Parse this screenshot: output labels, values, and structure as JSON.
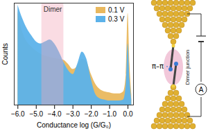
{
  "chart_data": {
    "type": "area",
    "x_label": "Conductance log (G/G₀)",
    "y_label": "Counts",
    "x": [
      -6,
      -5.75,
      -5.5,
      -5.25,
      -5,
      -4.75,
      -4.5,
      -4.25,
      -4,
      -3.75,
      -3.5,
      -3.25,
      -3,
      -2.75,
      -2.5,
      -2.25,
      -2,
      -1.75,
      -1.5,
      -1.25,
      -1,
      -0.75,
      -0.5,
      -0.25,
      -0.1,
      0,
      0.1,
      0.2
    ],
    "series": [
      {
        "name": "0.1 V",
        "color": "#e9b85e",
        "values": [
          92,
          72,
          62,
          57,
          53,
          50,
          48,
          47,
          46,
          45,
          44,
          40,
          35,
          38,
          45,
          42,
          30,
          20,
          15,
          13,
          12,
          11,
          11,
          13,
          30,
          90,
          40,
          10
        ]
      },
      {
        "name": "0.3 V",
        "color": "#5cb2ea",
        "values": [
          98,
          85,
          75,
          68,
          62,
          60,
          62,
          64,
          60,
          52,
          42,
          34,
          30,
          40,
          52,
          45,
          25,
          10,
          6,
          5,
          4,
          4,
          4,
          5,
          20,
          60,
          25,
          5
        ]
      }
    ],
    "xlim": [
      -6.2,
      0.3
    ],
    "xticks": [
      -6,
      -5,
      -4,
      -3,
      -2,
      -1,
      0
    ],
    "ylim": [
      0,
      100
    ],
    "yticks": [],
    "tick_labels": "x",
    "legend": "top-right",
    "annotations": [
      {
        "text": "Dimer",
        "x_range": [
          -4.7,
          -3.5
        ],
        "color": "#f2a7b8"
      }
    ]
  },
  "diagram": {
    "title": "Dimer junction",
    "interaction": "π–π",
    "meter": "A"
  }
}
